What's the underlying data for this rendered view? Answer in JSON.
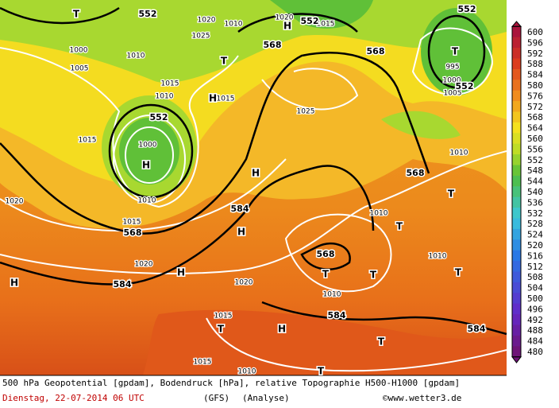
{
  "map": {
    "geopotential_labels": [
      "552",
      "552",
      "552",
      "568",
      "568",
      "552",
      "552",
      "568",
      "584",
      "568",
      "584",
      "568",
      "584",
      "584"
    ],
    "pressure_labels": [
      "1020",
      "1010",
      "1025",
      "1000",
      "1010",
      "1005",
      "1015",
      "1010",
      "1015",
      "1015",
      "1000",
      "1010",
      "1015",
      "1020",
      "1020",
      "1020",
      "1025",
      "1010",
      "1010",
      "1010",
      "1000",
      "1005",
      "995",
      "1015",
      "1015",
      "1010",
      "1010",
      "1020",
      "1015"
    ],
    "markers": [
      "T",
      "T",
      "H",
      "H",
      "H",
      "H",
      "H",
      "H",
      "H",
      "T",
      "T",
      "T",
      "T",
      "T",
      "T",
      "T",
      "T",
      "T",
      "H"
    ]
  },
  "colorbar": {
    "labels": [
      600,
      596,
      592,
      588,
      584,
      580,
      576,
      572,
      568,
      564,
      560,
      556,
      552,
      548,
      544,
      540,
      536,
      532,
      528,
      524,
      520,
      516,
      512,
      508,
      504,
      500,
      496,
      492,
      488,
      484,
      480
    ]
  },
  "footer": {
    "description": "500 hPa Geopotential [gpdam], Bodendruck [hPa], relative Topographie H500-H1000 [gpdam]",
    "date": "Dienstag, 22-07-2014  06 UTC",
    "model": "(GFS)",
    "run": "(Analyse)",
    "credit": "©www.wetter3.de"
  }
}
